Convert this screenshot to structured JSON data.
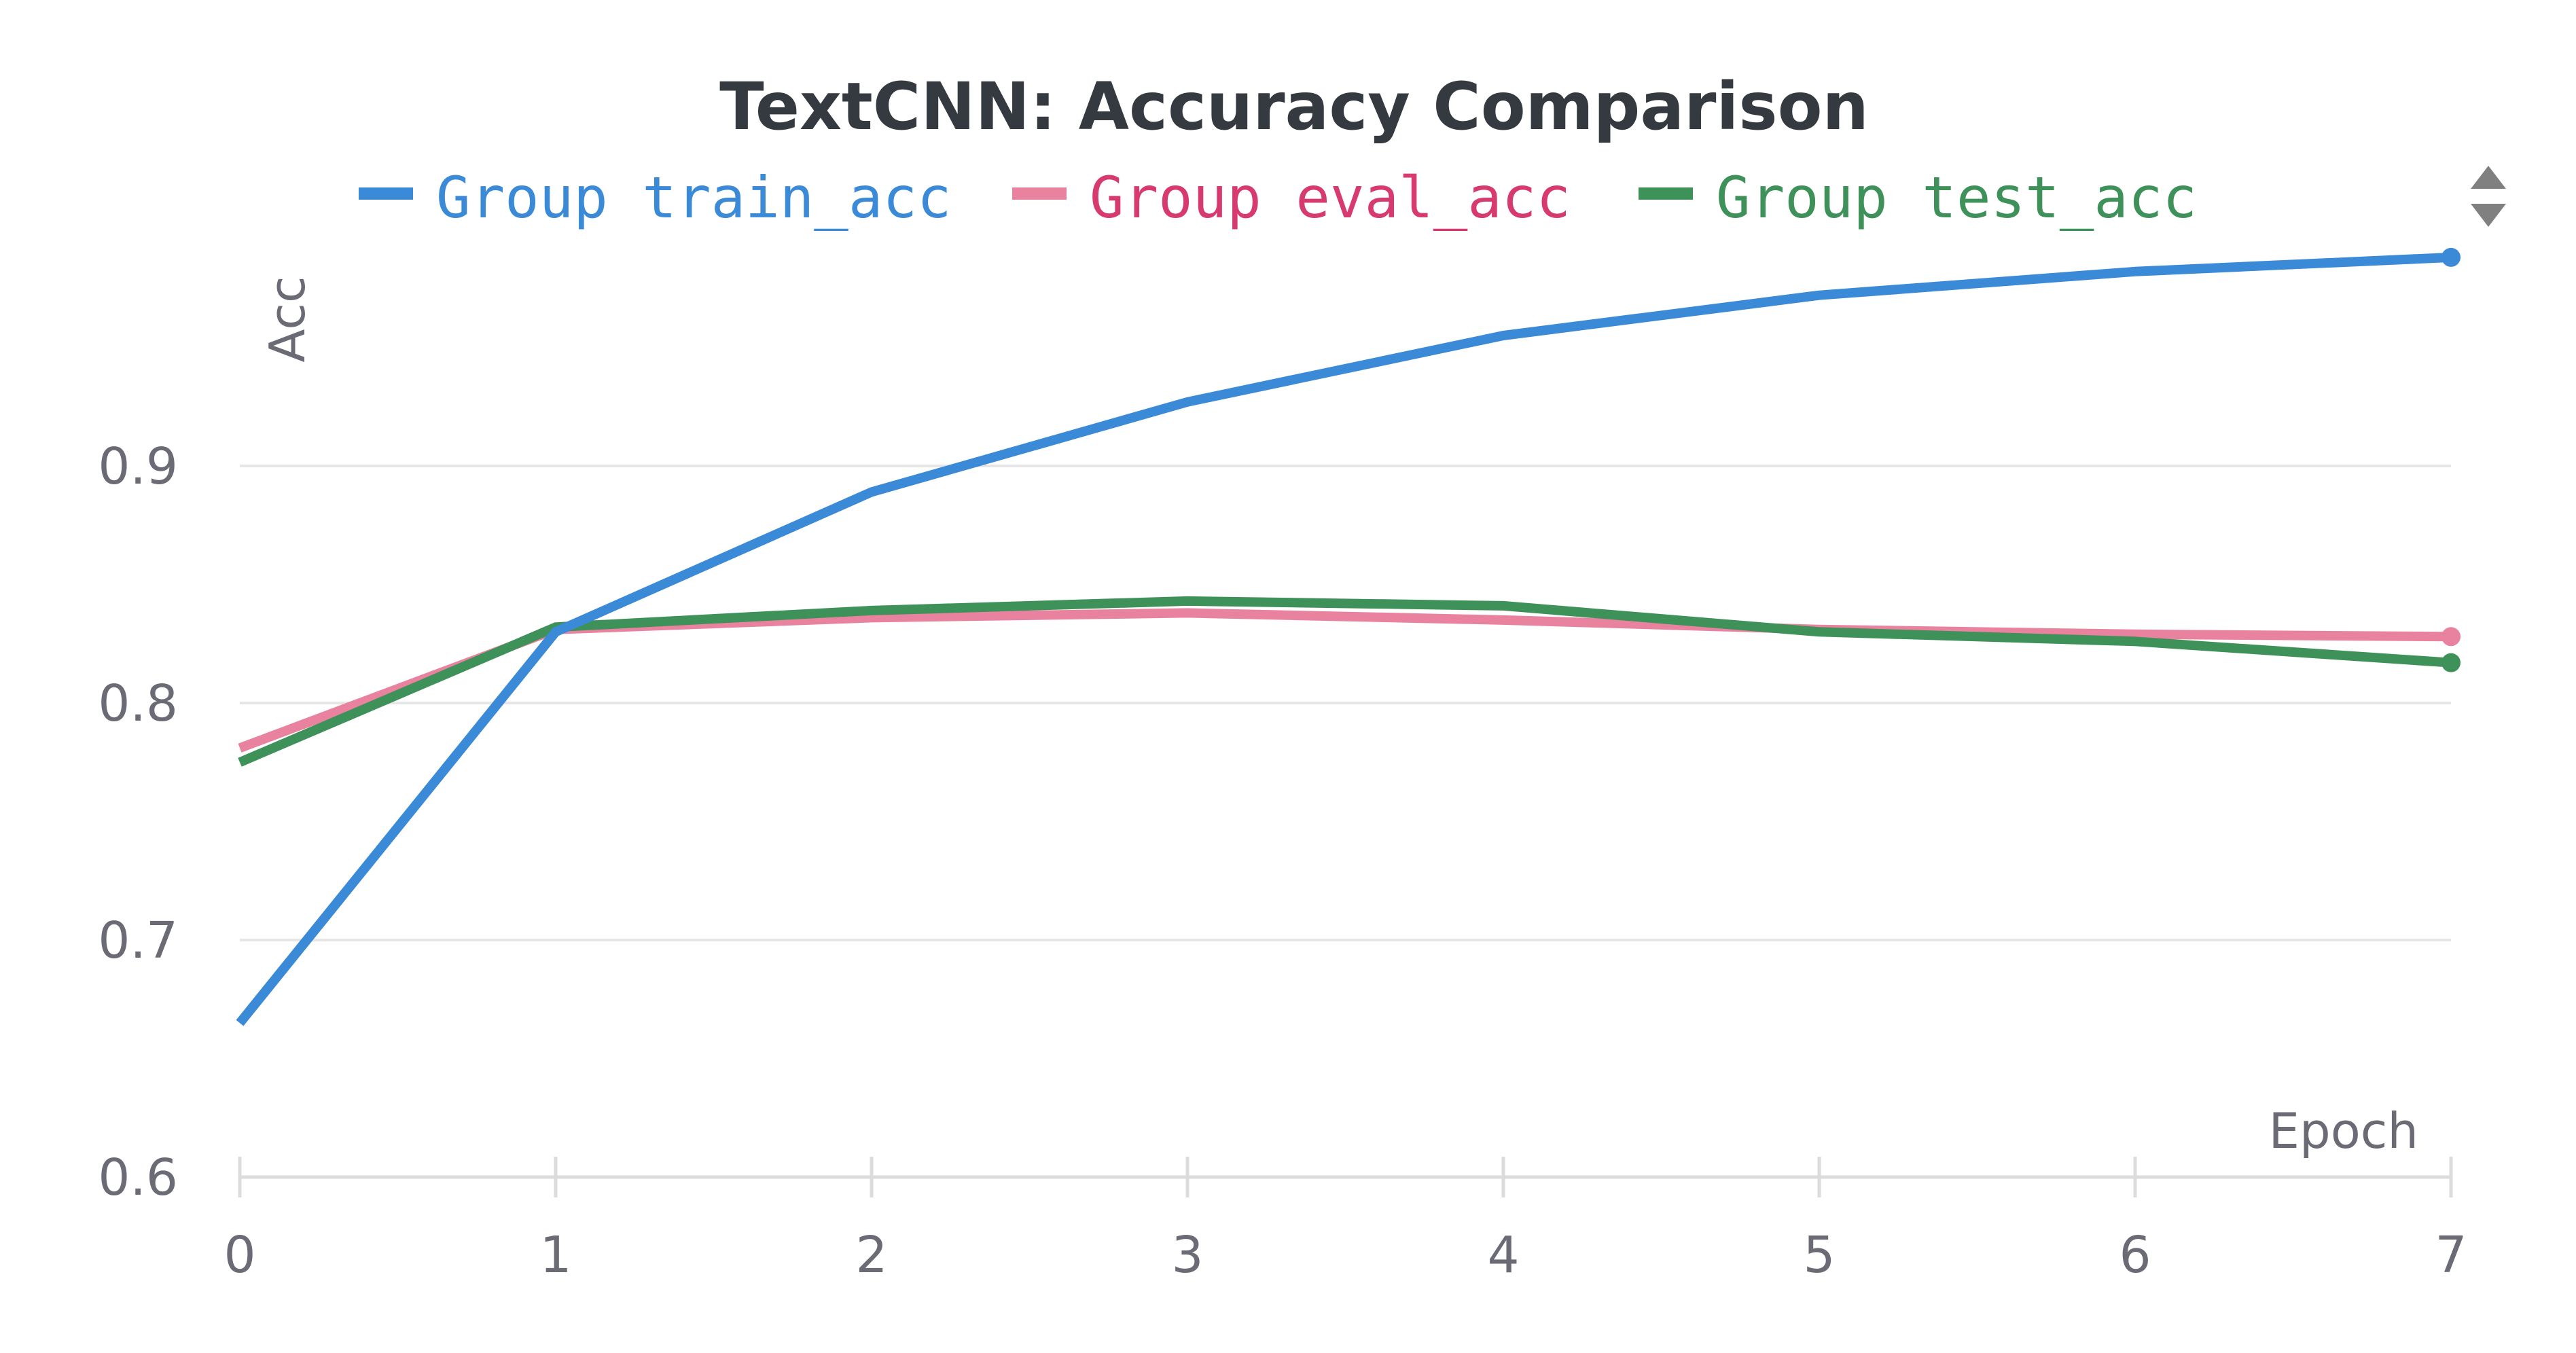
{
  "chart_data": {
    "type": "line",
    "title": "TextCNN: Accuracy Comparison",
    "xlabel": "Epoch",
    "ylabel": "Acc",
    "x": [
      0,
      1,
      2,
      3,
      4,
      5,
      6,
      7
    ],
    "xlim": [
      0,
      7
    ],
    "ylim": [
      0.6,
      0.98
    ],
    "yticks": [
      0.6,
      0.7,
      0.8,
      0.9
    ],
    "ytick_labels": [
      "0.6",
      "0.7",
      "0.8",
      "0.9"
    ],
    "xtick_labels": [
      "0",
      "1",
      "2",
      "3",
      "4",
      "5",
      "6",
      "7"
    ],
    "grid": true,
    "legend_position": "top",
    "series": [
      {
        "name": "Group train_acc",
        "color": "#3b8ad8",
        "values": [
          0.665,
          0.83,
          0.889,
          0.927,
          0.955,
          0.972,
          0.982,
          0.988
        ]
      },
      {
        "name": "Group eval_acc",
        "color": "#e8829f",
        "text_color": "#d63a6e",
        "values": [
          0.781,
          0.831,
          0.836,
          0.838,
          0.835,
          0.831,
          0.829,
          0.828
        ]
      },
      {
        "name": "Group test_acc",
        "color": "#3f915a",
        "values": [
          0.775,
          0.832,
          0.839,
          0.843,
          0.841,
          0.83,
          0.826,
          0.817
        ]
      }
    ]
  },
  "legend_scroll": {
    "up_icon": "triangle-up-icon",
    "down_icon": "triangle-down-icon"
  }
}
